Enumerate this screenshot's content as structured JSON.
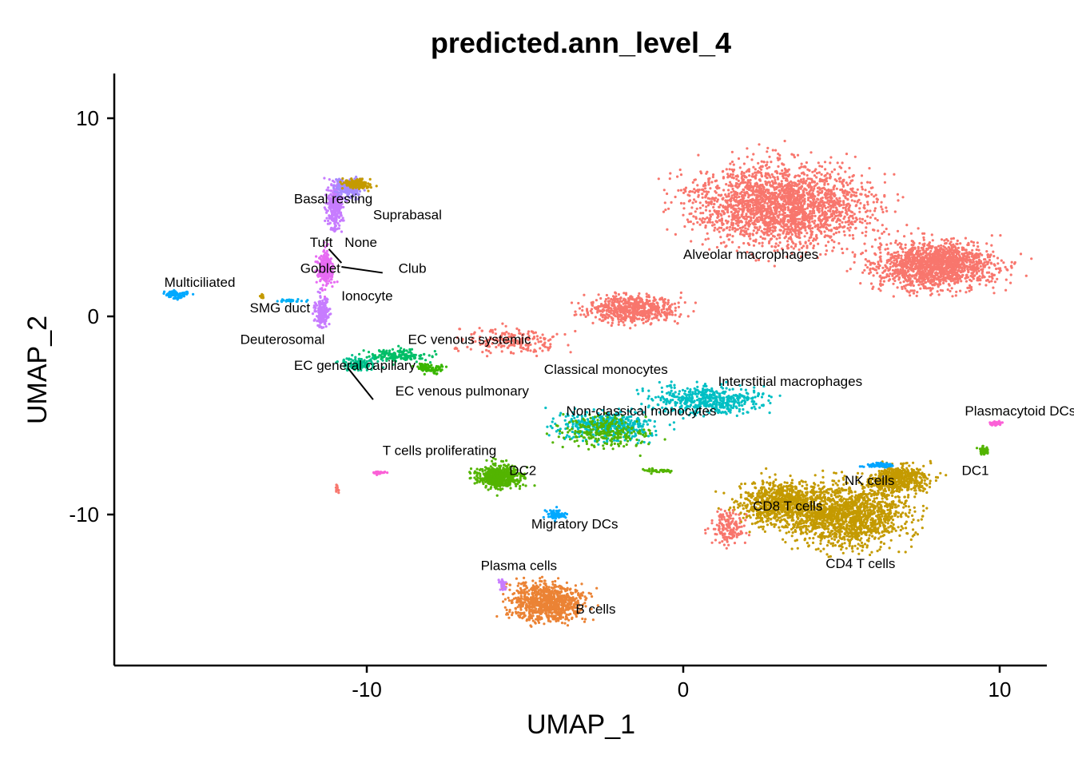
{
  "chart_data": {
    "type": "scatter",
    "title": "predicted.ann_level_4",
    "xlabel": "UMAP_1",
    "ylabel": "UMAP_2",
    "xlim": [
      -17.8,
      11.5
    ],
    "ylim": [
      -17.5,
      12.2
    ],
    "xticks": [
      -10,
      0,
      10
    ],
    "yticks": [
      -10,
      0,
      10
    ],
    "tick_labels": {
      "x": [
        "-10",
        "0",
        "10"
      ],
      "y": [
        "-10",
        "0",
        "10"
      ]
    },
    "grid": false,
    "legend": "none",
    "series_colors": {
      "Alveolar macrophages": "#F8766D",
      "Interstitial macrophages": "#00BFC4",
      "Classical monocytes": "#00BFC4",
      "Non-classical monocytes": "#00BFC4",
      "DC2": "#53B400",
      "DC1": "#53B400",
      "Migratory DCs": "#00A9FF",
      "Plasmacytoid DCs": "#FB61D7",
      "CD4 T cells": "#C49A00",
      "CD8 T cells": "#C49A00",
      "NK cells": "#00A5FF",
      "B cells": "#EB8335",
      "Plasma cells": "#C77CFF",
      "Basal resting": "#C77CFF",
      "Suprabasal": "#A58AFF",
      "Club": "#E76BF3",
      "Goblet": "#FF6C91",
      "Multiciliated": "#00A9FF",
      "Deuterosomal": "#00B0F6",
      "EC general capillary": "#00C08B",
      "EC venous systemic": "#00BE67",
      "EC venous pulmonary": "#39B600"
    },
    "clusters": [
      {
        "name": "Alveolar macrophages",
        "color": "#F8766D",
        "n": 2300,
        "cx": 3.2,
        "cy": 5.6,
        "sx": 3.6,
        "sy": 2.6
      },
      {
        "name": "Alveolar macrophages",
        "color": "#F8766D",
        "n": 1500,
        "cx": 8.0,
        "cy": 2.6,
        "sx": 2.4,
        "sy": 1.5
      },
      {
        "name": "Alveolar macrophages",
        "color": "#F8766D",
        "n": 600,
        "cx": -1.6,
        "cy": 0.4,
        "sx": 1.8,
        "sy": 0.9
      },
      {
        "name": "Alveolar macrophages",
        "color": "#F8766D",
        "n": 200,
        "cx": -5.5,
        "cy": -1.2,
        "sx": 2.0,
        "sy": 0.8
      },
      {
        "name": "Interstitial macrophages",
        "color": "#00BFC4",
        "n": 500,
        "cx": 0.8,
        "cy": -4.2,
        "sx": 2.4,
        "sy": 0.9
      },
      {
        "name": "Classical monocytes",
        "color": "#00BFC4",
        "n": 450,
        "cx": -2.4,
        "cy": -5.5,
        "sx": 2.0,
        "sy": 0.9
      },
      {
        "name": "Classical monocytes",
        "color": "#53B400",
        "n": 250,
        "cx": -2.4,
        "cy": -5.8,
        "sx": 1.8,
        "sy": 1.0
      },
      {
        "name": "DC2",
        "color": "#53B400",
        "n": 500,
        "cx": -5.8,
        "cy": -8.1,
        "sx": 0.9,
        "sy": 0.8
      },
      {
        "name": "Migratory DCs",
        "color": "#00A9FF",
        "n": 80,
        "cx": -4.0,
        "cy": -10.0,
        "sx": 0.4,
        "sy": 0.3
      },
      {
        "name": "CD4 T cells",
        "color": "#C49A00",
        "n": 1600,
        "cx": 5.2,
        "cy": -10.0,
        "sx": 2.4,
        "sy": 2.0
      },
      {
        "name": "CD8 T cells",
        "color": "#C49A00",
        "n": 700,
        "cx": 3.0,
        "cy": -9.4,
        "sx": 1.6,
        "sy": 1.4
      },
      {
        "name": "NK cells",
        "color": "#C49A00",
        "n": 500,
        "cx": 6.8,
        "cy": -8.2,
        "sx": 1.2,
        "sy": 0.9
      },
      {
        "name": "NK cells",
        "color": "#00A5FF",
        "n": 60,
        "cx": 6.2,
        "cy": -7.5,
        "sx": 0.6,
        "sy": 0.2
      },
      {
        "name": "CD8 T cells",
        "color": "#F8766D",
        "n": 160,
        "cx": 1.4,
        "cy": -10.6,
        "sx": 0.7,
        "sy": 1.0
      },
      {
        "name": "B cells",
        "color": "#EB8335",
        "n": 900,
        "cx": -4.3,
        "cy": -14.4,
        "sx": 1.5,
        "sy": 1.2
      },
      {
        "name": "Plasma cells",
        "color": "#C77CFF",
        "n": 30,
        "cx": -5.7,
        "cy": -13.5,
        "sx": 0.15,
        "sy": 0.4
      },
      {
        "name": "Basal resting",
        "color": "#C77CFF",
        "n": 300,
        "cx": -11.0,
        "cy": 5.6,
        "sx": 0.35,
        "sy": 1.4
      },
      {
        "name": "Suprabasal",
        "color": "#A58AFF",
        "n": 200,
        "cx": -10.6,
        "cy": 6.5,
        "sx": 0.5,
        "sy": 0.6
      },
      {
        "name": "Basal resting",
        "color": "#C49A00",
        "n": 150,
        "cx": -10.3,
        "cy": 6.7,
        "sx": 0.6,
        "sy": 0.3
      },
      {
        "name": "Club",
        "color": "#E76BF3",
        "n": 220,
        "cx": -11.3,
        "cy": 2.4,
        "sx": 0.3,
        "sy": 1.2
      },
      {
        "name": "Goblet",
        "color": "#C77CFF",
        "n": 180,
        "cx": -11.4,
        "cy": 0.2,
        "sx": 0.3,
        "sy": 1.0
      },
      {
        "name": "Multiciliated",
        "color": "#00A9FF",
        "n": 70,
        "cx": -16.0,
        "cy": 1.1,
        "sx": 0.6,
        "sy": 0.3
      },
      {
        "name": "Deuterosomal",
        "color": "#00B0F6",
        "n": 30,
        "cx": -12.4,
        "cy": 0.8,
        "sx": 0.6,
        "sy": 0.1
      },
      {
        "name": "EC venous systemic",
        "color": "#00BE67",
        "n": 160,
        "cx": -9.0,
        "cy": -2.0,
        "sx": 1.2,
        "sy": 0.4
      },
      {
        "name": "EC general capillary",
        "color": "#00C08B",
        "n": 120,
        "cx": -10.2,
        "cy": -2.4,
        "sx": 0.8,
        "sy": 0.4
      },
      {
        "name": "EC venous pulmonary",
        "color": "#39B600",
        "n": 80,
        "cx": -8.0,
        "cy": -2.6,
        "sx": 0.7,
        "sy": 0.3
      },
      {
        "name": "T cells proliferating",
        "color": "#FB61D7",
        "n": 40,
        "cx": -9.6,
        "cy": -7.9,
        "sx": 0.3,
        "sy": 0.1
      },
      {
        "name": "T cells proliferating",
        "color": "#F8766D",
        "n": 12,
        "cx": -10.9,
        "cy": -8.7,
        "sx": 0.08,
        "sy": 0.2
      },
      {
        "name": "Plasmacytoid DCs",
        "color": "#FB61D7",
        "n": 30,
        "cx": 9.9,
        "cy": -5.4,
        "sx": 0.25,
        "sy": 0.15
      },
      {
        "name": "DC1",
        "color": "#53B400",
        "n": 45,
        "cx": 9.5,
        "cy": -6.8,
        "sx": 0.2,
        "sy": 0.3
      },
      {
        "name": "Non-classical monocytes",
        "color": "#53B400",
        "n": 40,
        "cx": -0.8,
        "cy": -7.8,
        "sx": 0.5,
        "sy": 0.15
      },
      {
        "name": "SMG duct",
        "color": "#C49A00",
        "n": 15,
        "cx": -13.3,
        "cy": 1.0,
        "sx": 0.1,
        "sy": 0.15
      }
    ],
    "annotations": [
      {
        "text": "predicted.ann_level_4",
        "role": "title"
      },
      {
        "text": "Basal resting",
        "x": -12.3,
        "y": 5.7
      },
      {
        "text": "Suprabasal",
        "x": -9.8,
        "y": 4.9
      },
      {
        "text": "Tuft",
        "x": -11.8,
        "y": 3.5
      },
      {
        "text": "None",
        "x": -10.7,
        "y": 3.5
      },
      {
        "text": "Goblet",
        "x": -12.1,
        "y": 2.2
      },
      {
        "text": "Club",
        "x": -9.0,
        "y": 2.2
      },
      {
        "text": "Multiciliated",
        "x": -16.4,
        "y": 1.5
      },
      {
        "text": "Ionocyte",
        "x": -10.8,
        "y": 0.8
      },
      {
        "text": "SMG duct",
        "x": -13.7,
        "y": 0.2
      },
      {
        "text": "Deuterosomal",
        "x": -14.0,
        "y": -1.4
      },
      {
        "text": "EC venous systemic",
        "x": -8.7,
        "y": -1.4
      },
      {
        "text": "EC general capillary",
        "x": -12.3,
        "y": -2.7
      },
      {
        "text": "EC venous pulmonary",
        "x": -9.1,
        "y": -4.0
      },
      {
        "text": "Classical monocytes",
        "x": -4.4,
        "y": -2.9
      },
      {
        "text": "Alveolar macrophages",
        "x": 0.0,
        "y": 2.9
      },
      {
        "text": "Interstitial macrophages",
        "x": 1.1,
        "y": -3.5
      },
      {
        "text": "Non-classical monocytes",
        "x": -3.7,
        "y": -5.0
      },
      {
        "text": "Plasmacytoid DCs",
        "x": 8.9,
        "y": -5.0
      },
      {
        "text": "T cells proliferating",
        "x": -9.5,
        "y": -7.0
      },
      {
        "text": "DC2",
        "x": -5.5,
        "y": -8.0
      },
      {
        "text": "DC1",
        "x": 8.8,
        "y": -8.0
      },
      {
        "text": "NK cells",
        "x": 5.1,
        "y": -8.5
      },
      {
        "text": "CD8 T cells",
        "x": 2.2,
        "y": -9.8
      },
      {
        "text": "Migratory DCs",
        "x": -4.8,
        "y": -10.7
      },
      {
        "text": "CD4 T cells",
        "x": 4.5,
        "y": -12.7
      },
      {
        "text": "Plasma cells",
        "x": -6.4,
        "y": -12.8
      },
      {
        "text": "B cells",
        "x": -3.4,
        "y": -15.0
      }
    ],
    "leader_lines": [
      {
        "from": [
          -11.2,
          3.4
        ],
        "to": [
          -10.8,
          2.7
        ]
      },
      {
        "from": [
          -10.8,
          2.5
        ],
        "to": [
          -9.5,
          2.2
        ]
      },
      {
        "from": [
          -9.8,
          -4.2
        ],
        "to": [
          -10.6,
          -2.6
        ]
      }
    ]
  }
}
